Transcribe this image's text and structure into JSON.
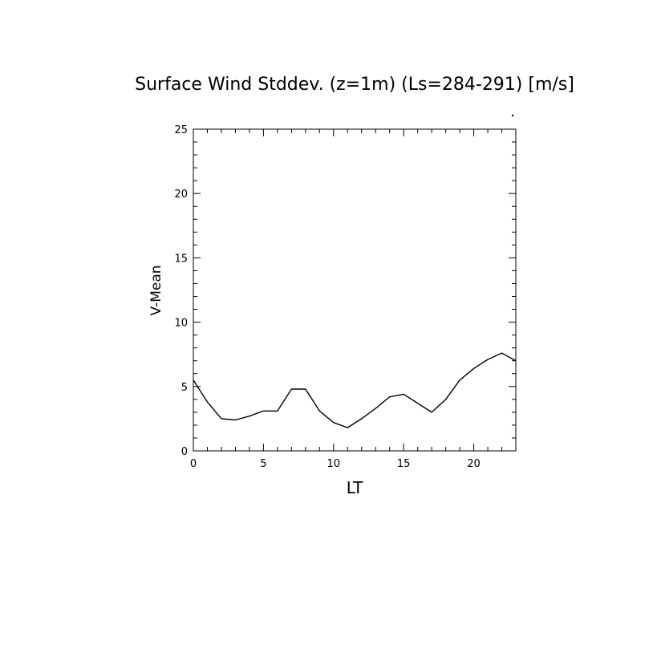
{
  "chart_data": {
    "type": "line",
    "title": "Surface Wind Stddev. (z=1m) (Ls=284-291) [m/s]",
    "xlabel": "LT",
    "ylabel": "V-Mean",
    "xlim": [
      0,
      23
    ],
    "ylim": [
      0,
      25
    ],
    "x_ticks": [
      0,
      5,
      10,
      15,
      20
    ],
    "y_ticks": [
      0,
      5,
      10,
      15,
      20,
      25
    ],
    "grid": false,
    "line_color": "#000000",
    "series": [
      {
        "x": [
          0,
          1,
          2,
          3,
          4,
          5,
          6,
          7,
          8,
          9,
          10,
          11,
          12,
          13,
          14,
          15,
          16,
          17,
          18,
          19,
          20,
          21,
          22,
          23
        ],
        "values": [
          5.5,
          3.8,
          2.5,
          2.4,
          2.7,
          3.1,
          3.1,
          4.8,
          4.8,
          3.1,
          2.2,
          1.8,
          2.5,
          3.3,
          4.2,
          4.4,
          3.7,
          3.0,
          4.0,
          5.5,
          6.4,
          7.1,
          7.6,
          7.0
        ]
      }
    ]
  }
}
